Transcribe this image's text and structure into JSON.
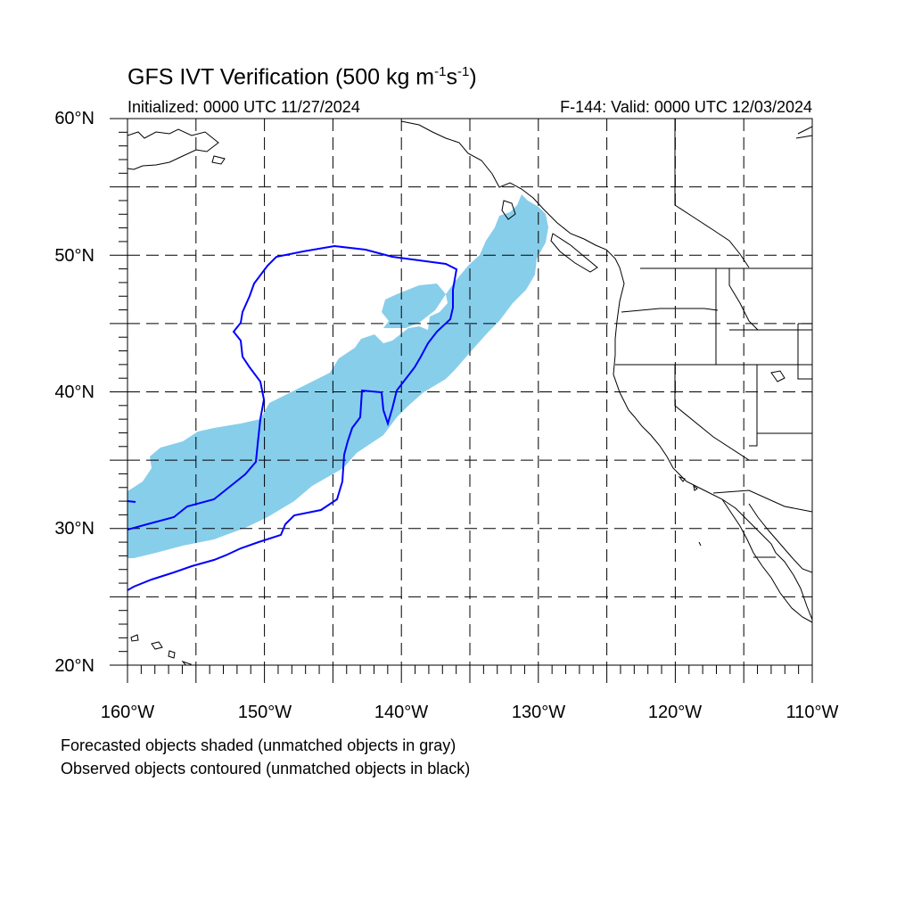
{
  "title": {
    "main": "GFS IVT Verification (500 kg m",
    "sup1": "-1",
    "mid": "s",
    "sup2": "-1",
    "end": ")"
  },
  "initialized": "Initialized: 0000 UTC 11/27/2024",
  "valid": "F-144: Valid: 0000 UTC 12/03/2024",
  "axes": {
    "y_labels": [
      "60°N",
      "50°N",
      "40°N",
      "30°N",
      "20°N"
    ],
    "x_labels": [
      "160°W",
      "150°W",
      "140°W",
      "130°W",
      "120°W",
      "110°W"
    ]
  },
  "footnotes": [
    "Forecasted objects shaded (unmatched objects in gray)",
    "Observed objects contoured (unmatched objects in black)"
  ],
  "colors": {
    "forecast_shading": "#87ceeb",
    "observed_contour": "#0000ff",
    "coastline": "#000000",
    "grid": "#000000"
  },
  "map": {
    "lon_range": [
      -160,
      -110
    ],
    "lat_range": [
      20,
      60
    ],
    "grid_lon_step": 5,
    "grid_lat_step": 5
  }
}
